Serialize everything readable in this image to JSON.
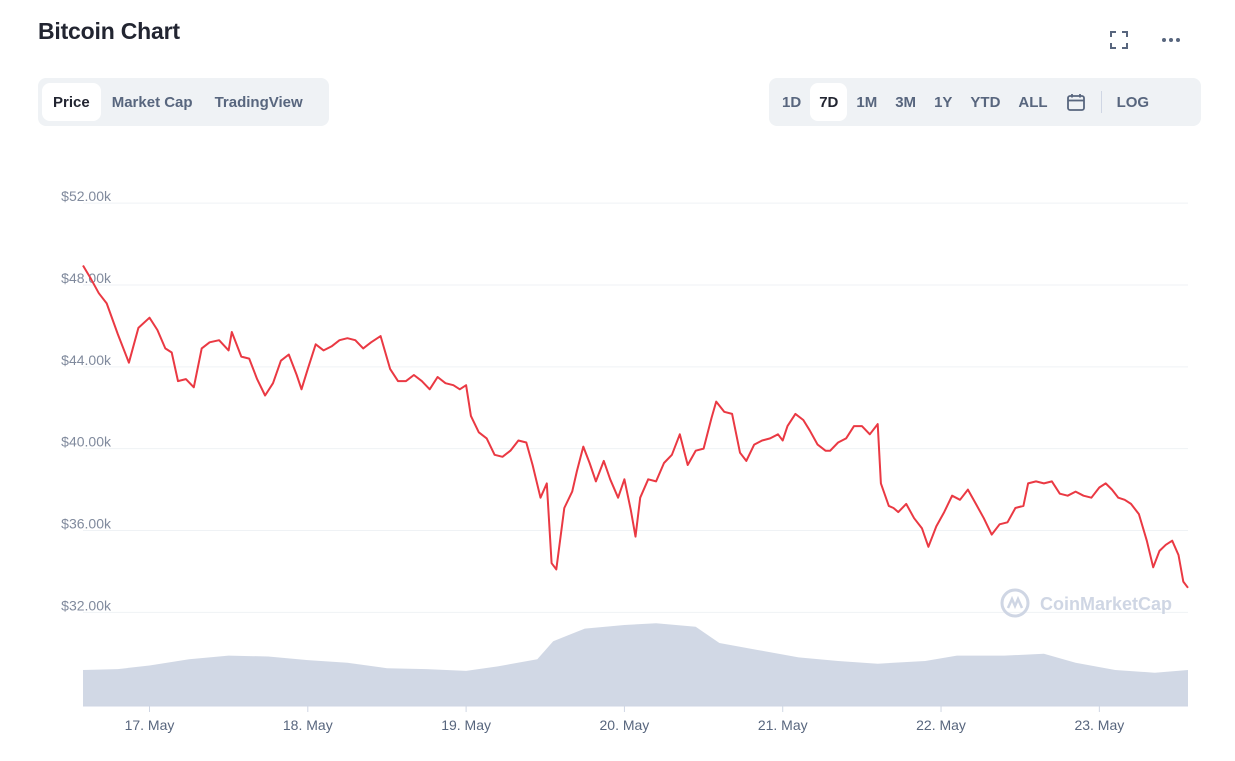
{
  "title": "Bitcoin Chart",
  "tabs": [
    {
      "label": "Price",
      "active": true
    },
    {
      "label": "Market Cap",
      "active": false
    },
    {
      "label": "TradingView",
      "active": false
    }
  ],
  "ranges": [
    {
      "label": "1D",
      "active": false
    },
    {
      "label": "7D",
      "active": true
    },
    {
      "label": "1M",
      "active": false
    },
    {
      "label": "3M",
      "active": false
    },
    {
      "label": "1Y",
      "active": false
    },
    {
      "label": "YTD",
      "active": false
    },
    {
      "label": "ALL",
      "active": false
    }
  ],
  "log_label": "LOG",
  "icons": {
    "expand": "expand-icon",
    "more": "more-dots-icon",
    "calendar": "calendar-icon",
    "watermark": "coinmarketcap-logo-icon"
  },
  "watermark": "CoinMarketCap",
  "colors": {
    "line": "#ea3943",
    "volume": "#cfd6e4",
    "active_tab_bg": "#ffffff",
    "segment_bg": "#eff2f5"
  },
  "chart_data": {
    "type": "line",
    "y_tick_labels": [
      "$52.00k",
      "$48.00k",
      "$44.00k",
      "$40.00k",
      "$36.00k",
      "$32.00k"
    ],
    "y_ticks": [
      52000,
      48000,
      44000,
      40000,
      36000,
      32000
    ],
    "ylim": [
      30500,
      54500
    ],
    "xlim": [
      16.58,
      23.56
    ],
    "x_ticks": [
      17,
      18,
      19,
      20,
      21,
      22,
      23
    ],
    "x_tick_labels": [
      "17. May",
      "18. May",
      "19. May",
      "20. May",
      "21. May",
      "22. May",
      "23. May"
    ],
    "grid": true,
    "series": [
      {
        "values": [
          [
            16.58,
            48950
          ],
          [
            16.63,
            48300
          ],
          [
            16.68,
            47600
          ],
          [
            16.73,
            47100
          ],
          [
            16.8,
            45600
          ],
          [
            16.87,
            44200
          ],
          [
            16.93,
            45900
          ],
          [
            17.0,
            46400
          ],
          [
            17.05,
            45800
          ],
          [
            17.1,
            44900
          ],
          [
            17.14,
            44700
          ],
          [
            17.18,
            43300
          ],
          [
            17.23,
            43400
          ],
          [
            17.28,
            43000
          ],
          [
            17.33,
            44900
          ],
          [
            17.38,
            45200
          ],
          [
            17.44,
            45300
          ],
          [
            17.5,
            44800
          ],
          [
            17.52,
            45700
          ],
          [
            17.58,
            44500
          ],
          [
            17.63,
            44400
          ],
          [
            17.68,
            43400
          ],
          [
            17.73,
            42600
          ],
          [
            17.78,
            43200
          ],
          [
            17.83,
            44300
          ],
          [
            17.88,
            44600
          ],
          [
            17.93,
            43600
          ],
          [
            17.96,
            42900
          ],
          [
            18.0,
            43900
          ],
          [
            18.05,
            45100
          ],
          [
            18.1,
            44800
          ],
          [
            18.15,
            45000
          ],
          [
            18.2,
            45300
          ],
          [
            18.25,
            45400
          ],
          [
            18.3,
            45300
          ],
          [
            18.35,
            44900
          ],
          [
            18.4,
            45200
          ],
          [
            18.46,
            45500
          ],
          [
            18.52,
            43900
          ],
          [
            18.57,
            43300
          ],
          [
            18.62,
            43300
          ],
          [
            18.67,
            43600
          ],
          [
            18.72,
            43300
          ],
          [
            18.77,
            42900
          ],
          [
            18.82,
            43500
          ],
          [
            18.87,
            43200
          ],
          [
            18.92,
            43100
          ],
          [
            18.96,
            42900
          ],
          [
            19.0,
            43100
          ],
          [
            19.03,
            41600
          ],
          [
            19.08,
            40800
          ],
          [
            19.13,
            40500
          ],
          [
            19.18,
            39700
          ],
          [
            19.23,
            39600
          ],
          [
            19.28,
            39900
          ],
          [
            19.33,
            40400
          ],
          [
            19.38,
            40300
          ],
          [
            19.42,
            39200
          ],
          [
            19.47,
            37600
          ],
          [
            19.51,
            38300
          ],
          [
            19.54,
            34400
          ],
          [
            19.57,
            34100
          ],
          [
            19.62,
            37100
          ],
          [
            19.67,
            37900
          ],
          [
            19.7,
            38900
          ],
          [
            19.74,
            40100
          ],
          [
            19.78,
            39300
          ],
          [
            19.82,
            38400
          ],
          [
            19.87,
            39400
          ],
          [
            19.91,
            38500
          ],
          [
            19.96,
            37600
          ],
          [
            20.0,
            38500
          ],
          [
            20.04,
            37000
          ],
          [
            20.07,
            35700
          ],
          [
            20.1,
            37600
          ],
          [
            20.15,
            38500
          ],
          [
            20.2,
            38400
          ],
          [
            20.25,
            39300
          ],
          [
            20.3,
            39700
          ],
          [
            20.35,
            40700
          ],
          [
            20.4,
            39200
          ],
          [
            20.45,
            39900
          ],
          [
            20.5,
            40000
          ],
          [
            20.55,
            41500
          ],
          [
            20.58,
            42300
          ],
          [
            20.63,
            41800
          ],
          [
            20.68,
            41700
          ],
          [
            20.73,
            39800
          ],
          [
            20.77,
            39400
          ],
          [
            20.82,
            40200
          ],
          [
            20.87,
            40400
          ],
          [
            20.92,
            40500
          ],
          [
            20.97,
            40700
          ],
          [
            21.0,
            40400
          ],
          [
            21.03,
            41100
          ],
          [
            21.08,
            41700
          ],
          [
            21.13,
            41400
          ],
          [
            21.17,
            40900
          ],
          [
            21.22,
            40200
          ],
          [
            21.27,
            39900
          ],
          [
            21.3,
            39900
          ],
          [
            21.35,
            40300
          ],
          [
            21.4,
            40500
          ],
          [
            21.45,
            41100
          ],
          [
            21.5,
            41100
          ],
          [
            21.55,
            40700
          ],
          [
            21.6,
            41200
          ],
          [
            21.62,
            38300
          ],
          [
            21.67,
            37200
          ],
          [
            21.7,
            37100
          ],
          [
            21.73,
            36900
          ],
          [
            21.78,
            37300
          ],
          [
            21.83,
            36600
          ],
          [
            21.88,
            36100
          ],
          [
            21.92,
            35200
          ],
          [
            21.97,
            36200
          ],
          [
            22.02,
            36900
          ],
          [
            22.07,
            37700
          ],
          [
            22.12,
            37500
          ],
          [
            22.17,
            38000
          ],
          [
            22.22,
            37300
          ],
          [
            22.27,
            36600
          ],
          [
            22.32,
            35800
          ],
          [
            22.37,
            36300
          ],
          [
            22.42,
            36400
          ],
          [
            22.47,
            37100
          ],
          [
            22.52,
            37200
          ],
          [
            22.55,
            38300
          ],
          [
            22.6,
            38400
          ],
          [
            22.65,
            38300
          ],
          [
            22.7,
            38400
          ],
          [
            22.75,
            37800
          ],
          [
            22.8,
            37700
          ],
          [
            22.85,
            37900
          ],
          [
            22.9,
            37700
          ],
          [
            22.95,
            37600
          ],
          [
            23.0,
            38100
          ],
          [
            23.04,
            38300
          ],
          [
            23.08,
            38000
          ],
          [
            23.12,
            37600
          ],
          [
            23.16,
            37500
          ],
          [
            23.2,
            37300
          ],
          [
            23.25,
            36800
          ],
          [
            23.3,
            35500
          ],
          [
            23.34,
            34200
          ],
          [
            23.38,
            35000
          ],
          [
            23.42,
            35300
          ],
          [
            23.46,
            35500
          ],
          [
            23.5,
            34800
          ],
          [
            23.53,
            33500
          ],
          [
            23.56,
            33200
          ]
        ]
      }
    ],
    "volume": {
      "type": "area",
      "values": [
        [
          16.58,
          0.4
        ],
        [
          16.8,
          0.41
        ],
        [
          17.0,
          0.45
        ],
        [
          17.25,
          0.52
        ],
        [
          17.5,
          0.56
        ],
        [
          17.75,
          0.55
        ],
        [
          18.0,
          0.51
        ],
        [
          18.25,
          0.48
        ],
        [
          18.5,
          0.42
        ],
        [
          18.75,
          0.41
        ],
        [
          19.0,
          0.39
        ],
        [
          19.2,
          0.44
        ],
        [
          19.45,
          0.52
        ],
        [
          19.55,
          0.72
        ],
        [
          19.75,
          0.86
        ],
        [
          20.0,
          0.9
        ],
        [
          20.2,
          0.92
        ],
        [
          20.45,
          0.88
        ],
        [
          20.6,
          0.7
        ],
        [
          20.85,
          0.62
        ],
        [
          21.1,
          0.54
        ],
        [
          21.35,
          0.5
        ],
        [
          21.6,
          0.47
        ],
        [
          21.9,
          0.5
        ],
        [
          22.1,
          0.56
        ],
        [
          22.4,
          0.56
        ],
        [
          22.65,
          0.58
        ],
        [
          22.85,
          0.48
        ],
        [
          23.1,
          0.4
        ],
        [
          23.35,
          0.37
        ],
        [
          23.56,
          0.4
        ]
      ]
    }
  }
}
